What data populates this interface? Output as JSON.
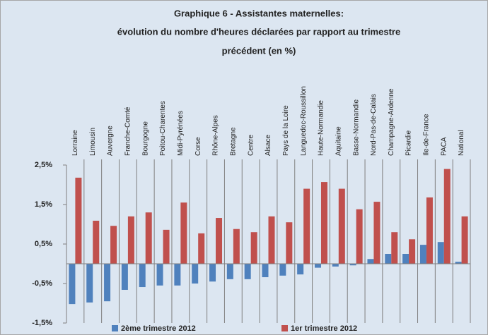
{
  "chart_data": {
    "type": "bar",
    "title": [
      "Graphique 6 -  Assistantes maternelles:",
      "évolution du nombre d'heures déclarées par rapport au trimestre",
      "précédent (en %)"
    ],
    "categories": [
      "Lorraine",
      "Limousin",
      "Auvergne",
      "Franche-Comté",
      "Bourgogne",
      "Poitou-Charentes",
      "Midi-Pyrénées",
      "Corse",
      "Rhône-Alpes",
      "Bretagne",
      "Centre",
      "Alsace",
      "Pays de la Loire",
      "Languedoc-Roussillon",
      "Haute-Normandie",
      "Aquitaine",
      "Basse-Normandie",
      "Nord-Pas-de-Calais",
      "Champagne-Ardenne",
      "Picardie",
      "Ile-de-France",
      "PACA",
      "National"
    ],
    "series": [
      {
        "name": "2ème trimestre 2012",
        "color": "#4f81bd",
        "values": [
          -1.02,
          -0.98,
          -0.95,
          -0.66,
          -0.59,
          -0.55,
          -0.55,
          -0.5,
          -0.45,
          -0.39,
          -0.39,
          -0.34,
          -0.3,
          -0.27,
          -0.1,
          -0.07,
          -0.04,
          0.12,
          0.25,
          0.25,
          0.48,
          0.55,
          0.05
        ]
      },
      {
        "name": "1er trimestre 2012",
        "color": "#c0504d",
        "values": [
          2.18,
          1.09,
          0.96,
          1.2,
          1.3,
          0.86,
          1.55,
          0.77,
          1.16,
          0.88,
          0.8,
          1.2,
          1.05,
          1.9,
          2.07,
          1.9,
          1.38,
          1.57,
          0.8,
          0.62,
          1.68,
          2.4,
          1.2
        ]
      }
    ],
    "ylim": [
      -1.5,
      2.5
    ],
    "yticks": [
      {
        "value": -1.5,
        "label": "-1,5%"
      },
      {
        "value": -0.5,
        "label": "-0,5%"
      },
      {
        "value": 0.5,
        "label": "0,5%"
      },
      {
        "value": 1.5,
        "label": "1,5%"
      },
      {
        "value": 2.5,
        "label": "2,5%"
      }
    ],
    "grid": false,
    "legend": "bottom"
  }
}
